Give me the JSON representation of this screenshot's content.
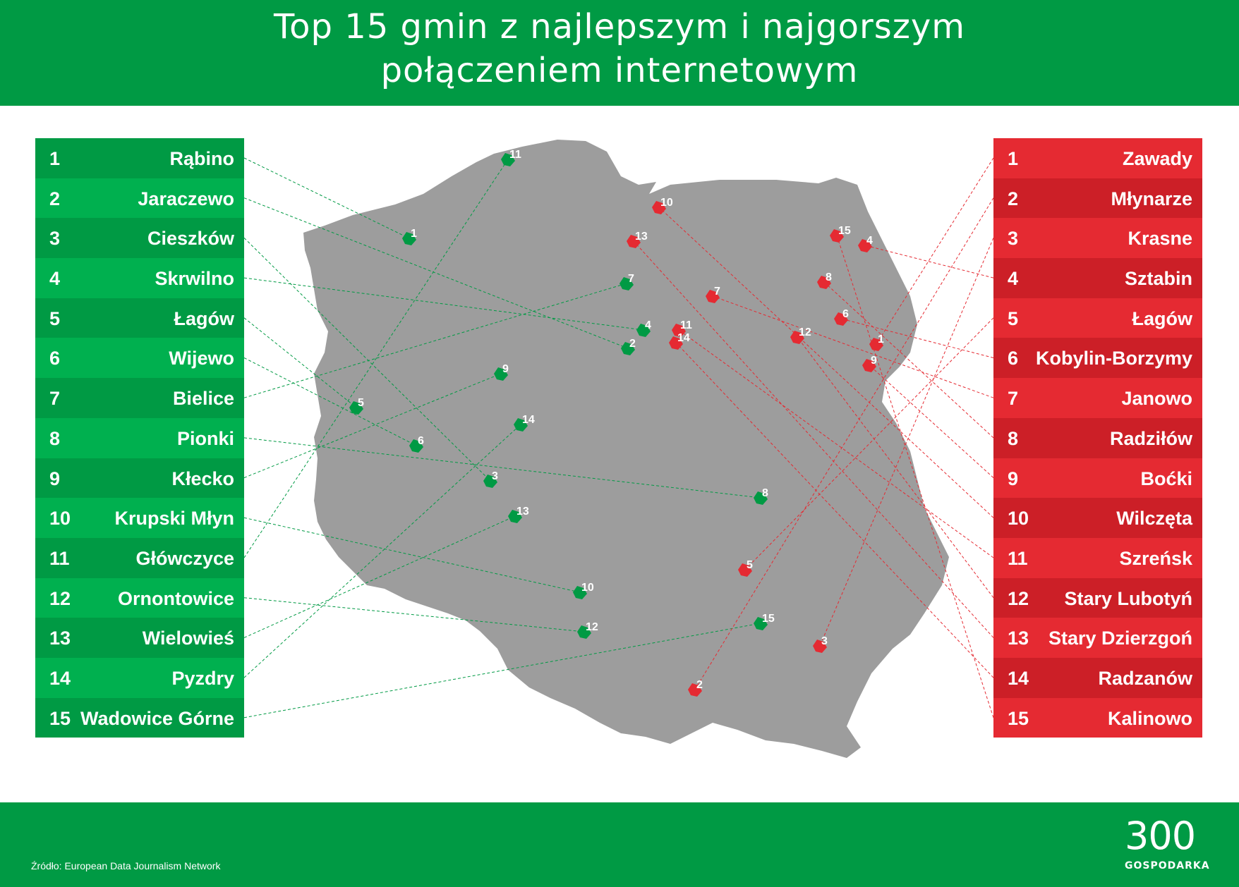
{
  "title": {
    "line1": "Top 15 gmin z najlepszym i najgorszym",
    "line2": "połączeniem internetowym"
  },
  "colors": {
    "brand_green": "#009a44",
    "best_green": "#009a44",
    "best_green_alt": "#00b04f",
    "worst_red": "#e52a32",
    "worst_red_alt": "#cc1f27",
    "map_gray": "#9d9d9d"
  },
  "best": [
    {
      "rank": "1",
      "name": "Rąbino"
    },
    {
      "rank": "2",
      "name": "Jaraczewo"
    },
    {
      "rank": "3",
      "name": "Cieszków"
    },
    {
      "rank": "4",
      "name": "Skrwilno"
    },
    {
      "rank": "5",
      "name": "Łagów"
    },
    {
      "rank": "6",
      "name": "Wijewo"
    },
    {
      "rank": "7",
      "name": "Bielice"
    },
    {
      "rank": "8",
      "name": "Pionki"
    },
    {
      "rank": "9",
      "name": "Kłecko"
    },
    {
      "rank": "10",
      "name": "Krupski Młyn"
    },
    {
      "rank": "11",
      "name": "Główczyce"
    },
    {
      "rank": "12",
      "name": "Ornontowice"
    },
    {
      "rank": "13",
      "name": "Wielowieś"
    },
    {
      "rank": "14",
      "name": "Pyzdry"
    },
    {
      "rank": "15",
      "name": "Wadowice Górne"
    }
  ],
  "worst": [
    {
      "rank": "1",
      "name": "Zawady"
    },
    {
      "rank": "2",
      "name": "Młynarze"
    },
    {
      "rank": "3",
      "name": "Krasne"
    },
    {
      "rank": "4",
      "name": "Sztabin"
    },
    {
      "rank": "5",
      "name": "Łagów"
    },
    {
      "rank": "6",
      "name": "Kobylin-Borzymy"
    },
    {
      "rank": "7",
      "name": "Janowo"
    },
    {
      "rank": "8",
      "name": "Radziłów"
    },
    {
      "rank": "9",
      "name": "Boćki"
    },
    {
      "rank": "10",
      "name": "Wilczęta"
    },
    {
      "rank": "11",
      "name": "Szreńsk"
    },
    {
      "rank": "12",
      "name": "Stary Lubotyń"
    },
    {
      "rank": "13",
      "name": "Stary Dzierzgoń"
    },
    {
      "rank": "14",
      "name": "Radzanów"
    },
    {
      "rank": "15",
      "name": "Kalinowo"
    }
  ],
  "map_labels": {
    "best": [
      "1",
      "2",
      "3",
      "4",
      "5",
      "6",
      "7",
      "8",
      "9",
      "10",
      "11",
      "12",
      "13",
      "14",
      "15"
    ],
    "worst": [
      "1",
      "2",
      "3",
      "4",
      "5",
      "6",
      "7",
      "8",
      "9",
      "10",
      "11",
      "12",
      "13",
      "14",
      "15"
    ]
  },
  "footer": {
    "source": "Źródło: European Data Journalism Network",
    "logo_number": "300",
    "logo_text": "GOSPODARKA"
  }
}
